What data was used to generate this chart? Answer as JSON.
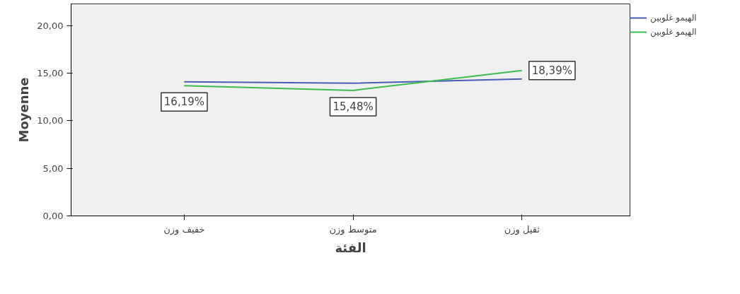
{
  "chart_data": {
    "type": "line",
    "xlabel": "الفئة",
    "ylabel": "Moyenne",
    "categories": [
      "خفيف وزن",
      "متوسط وزن",
      "ثقيل وزن"
    ],
    "series": [
      {
        "name": "الهيمو غلوبين",
        "color": "#4a5bb5",
        "values": [
          14.1,
          13.95,
          14.4
        ]
      },
      {
        "name": "الهيمو غلوبين",
        "color": "#3dbb4f",
        "values": [
          13.7,
          13.2,
          15.3
        ]
      }
    ],
    "ylim": [
      0,
      22.3
    ],
    "yticks": [
      {
        "value": 0,
        "label": "0,00"
      },
      {
        "value": 5,
        "label": "5,00"
      },
      {
        "value": 10,
        "label": "10,00"
      },
      {
        "value": 15,
        "label": "15,00"
      },
      {
        "value": 20,
        "label": "20,00"
      }
    ],
    "annotations": [
      {
        "text": "16,19%",
        "x": "خفيف وزن",
        "y": 13.7
      },
      {
        "text": "15,48%",
        "x": "متوسط وزن",
        "y": 13.2
      },
      {
        "text": "18,39%",
        "x": "ثقيل وزن",
        "y": 15.3
      }
    ],
    "grid": false,
    "legend": "top right",
    "marker": "none",
    "line_style": "solid"
  }
}
